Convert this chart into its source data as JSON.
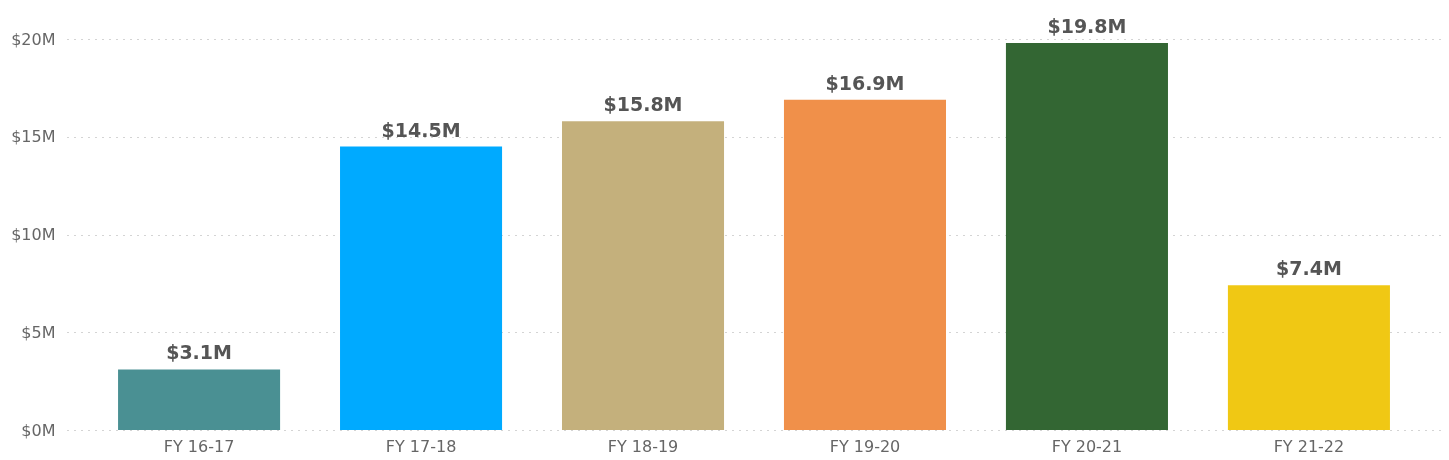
{
  "chart_data": {
    "type": "bar",
    "categories": [
      "FY 16-17",
      "FY 17-18",
      "FY 18-19",
      "FY 19-20",
      "FY 20-21",
      "FY 21-22"
    ],
    "values": [
      3.1,
      14.5,
      15.8,
      16.9,
      19.8,
      7.4
    ],
    "colors": [
      "#4a9093",
      "#00aaff",
      "#c4b07c",
      "#f0904a",
      "#336633",
      "#f0c814"
    ],
    "value_labels": [
      "$3.1M",
      "$14.5M",
      "$15.8M",
      "$16.9M",
      "$19.8M",
      "$7.4M"
    ],
    "ylim": [
      0,
      22
    ],
    "yticks": [
      {
        "value": 0,
        "label": "$0M"
      },
      {
        "value": 5,
        "label": "$5M"
      },
      {
        "value": 10,
        "label": "$10M"
      },
      {
        "value": 15,
        "label": "$15M"
      },
      {
        "value": 20,
        "label": "$20M"
      }
    ],
    "grid": "y"
  }
}
